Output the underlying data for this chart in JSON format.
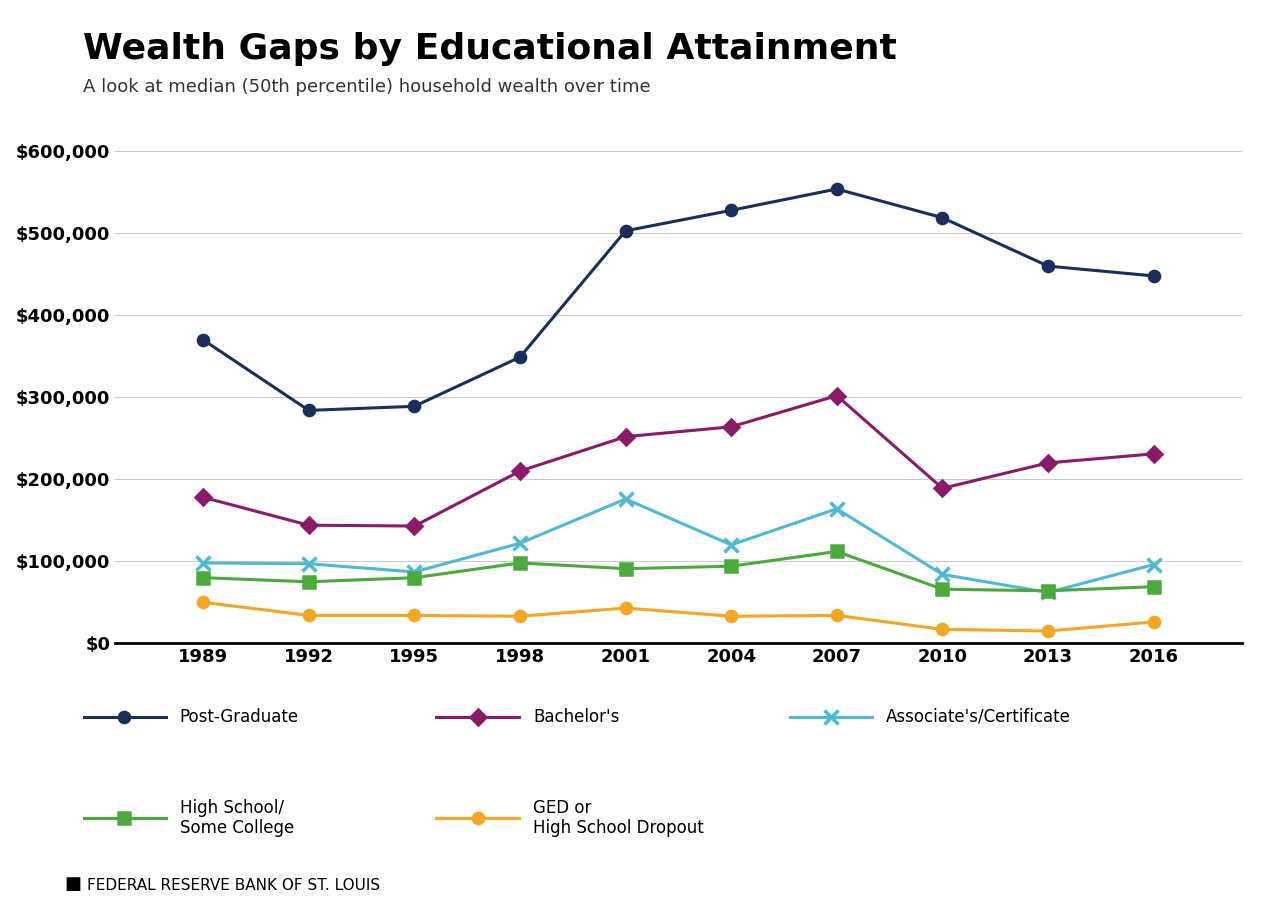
{
  "title": "Wealth Gaps by Educational Attainment",
  "subtitle": "A look at median (50th percentile) household wealth over time",
  "footer": "FEDERAL RESERVE BANK OF ST. LOUIS",
  "years": [
    1989,
    1992,
    1995,
    1998,
    2001,
    2004,
    2007,
    2010,
    2013,
    2016
  ],
  "series": [
    {
      "key": "post_graduate",
      "label": "Post-Graduate",
      "color": "#1a2e5a",
      "marker": "o",
      "markersize": 8,
      "values": [
        370000,
        284000,
        289000,
        349000,
        503000,
        528000,
        554000,
        519000,
        460000,
        448000
      ]
    },
    {
      "key": "bachelors",
      "label": "Bachelor's",
      "color": "#8b1a6b",
      "marker": "D",
      "markersize": 8,
      "values": [
        178000,
        144000,
        143000,
        210000,
        252000,
        264000,
        302000,
        189000,
        220000,
        231000
      ]
    },
    {
      "key": "associates",
      "label": "Associate's/Certificate",
      "color": "#4fb8d4",
      "marker": "x",
      "markersize": 10,
      "values": [
        98000,
        97000,
        87000,
        122000,
        176000,
        120000,
        164000,
        84000,
        62000,
        96000
      ]
    },
    {
      "key": "high_school",
      "label": "High School/\nSome College",
      "color": "#4aaa3c",
      "marker": "s",
      "markersize": 8,
      "values": [
        80000,
        75000,
        80000,
        98000,
        91000,
        94000,
        112000,
        66000,
        64000,
        69000
      ]
    },
    {
      "key": "ged",
      "label": "GED or\nHigh School Dropout",
      "color": "#f5a623",
      "marker": "o",
      "markersize": 8,
      "values": [
        50000,
        34000,
        34000,
        33000,
        43000,
        33000,
        34000,
        17000,
        15000,
        26000
      ]
    }
  ],
  "ylim": [
    0,
    650000
  ],
  "yticks": [
    0,
    100000,
    200000,
    300000,
    400000,
    500000,
    600000
  ],
  "background_color": "#ffffff",
  "grid_color": "#cccccc",
  "title_fontsize": 26,
  "subtitle_fontsize": 13,
  "tick_fontsize": 13,
  "legend_fontsize": 12,
  "footer_fontsize": 11,
  "linewidth": 2.2
}
